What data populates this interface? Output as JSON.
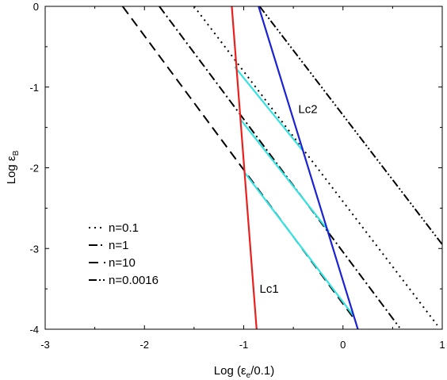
{
  "chart_data": {
    "type": "line",
    "xlabel": "Log (ε_e/0.1)",
    "xlabel_main": "Log (ε",
    "xlabel_sub": "e",
    "xlabel_tail": "/0.1)",
    "ylabel": "Log ε_B",
    "ylabel_main": "Log ε",
    "ylabel_sub": "B",
    "xlim": [
      -3,
      1
    ],
    "ylim": [
      -4,
      0
    ],
    "xticks": [
      -3,
      -2,
      -1,
      0,
      1
    ],
    "yticks": [
      -4,
      -3,
      -2,
      -1,
      0
    ],
    "xtick_labels": [
      "-3",
      "-2",
      "-1",
      "0",
      "1"
    ],
    "ytick_labels": [
      "-4",
      "-3",
      "-2",
      "-1",
      "0"
    ],
    "grid": false,
    "legend_position": "bottom-left",
    "series": [
      {
        "name": "n=0.1",
        "style": "dotted",
        "color": "#000000",
        "points": [
          [
            -1.5,
            0
          ],
          [
            0.95,
            -3.95
          ]
        ]
      },
      {
        "name": "n=1",
        "style": "dashdot",
        "color": "#000000",
        "points": [
          [
            -1.85,
            0
          ],
          [
            0.57,
            -3.98
          ]
        ]
      },
      {
        "name": "n=10",
        "style": "dashed",
        "color": "#000000",
        "points": [
          [
            -2.22,
            0
          ],
          [
            0.13,
            -3.9
          ]
        ]
      },
      {
        "name": "n=0.0016",
        "style": "dashdotdot",
        "color": "#000000",
        "points": [
          [
            -0.84,
            0
          ],
          [
            1.0,
            -2.95
          ]
        ]
      }
    ],
    "boundaries": [
      {
        "label": "Lc1",
        "color": "#e8201e",
        "points": [
          [
            -1.12,
            0
          ],
          [
            -0.87,
            -4
          ]
        ]
      },
      {
        "label": "Lc2",
        "color": "#1a22d4",
        "points": [
          [
            -0.85,
            0
          ],
          [
            0.15,
            -4
          ]
        ]
      }
    ],
    "segments": [
      {
        "color": "#35e2e2",
        "points": [
          [
            -1.09,
            -0.75
          ],
          [
            -0.41,
            -1.78
          ]
        ]
      },
      {
        "color": "#35e2e2",
        "points": [
          [
            -1.04,
            -1.39
          ],
          [
            -0.14,
            -2.79
          ]
        ]
      },
      {
        "color": "#35e2e2",
        "points": [
          [
            -0.99,
            -2.06
          ],
          [
            0.11,
            -3.84
          ]
        ]
      }
    ],
    "annotations": [
      {
        "text": "Lc2",
        "x": -0.45,
        "y": -1.32
      },
      {
        "text": "Lc1",
        "x": -0.84,
        "y": -3.55
      }
    ]
  }
}
